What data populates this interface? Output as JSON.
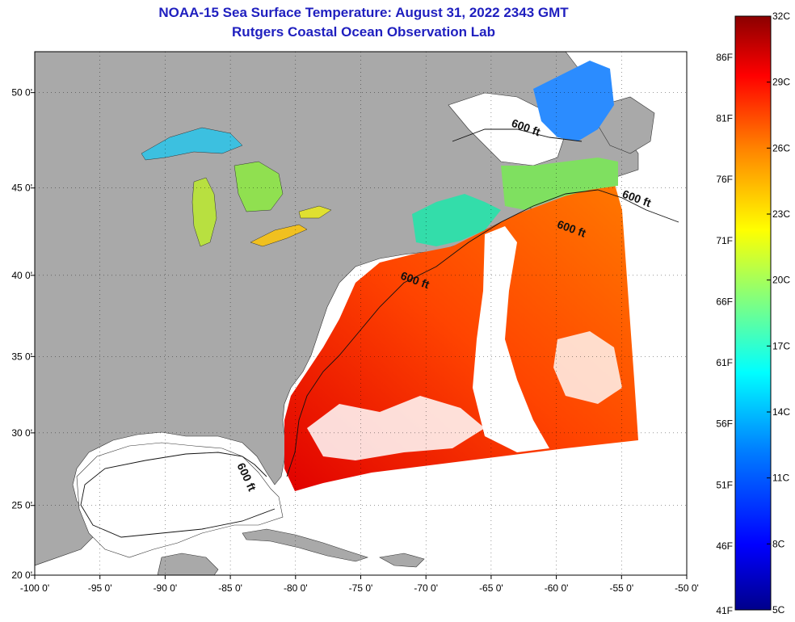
{
  "title": "NOAA-15 Sea Surface Temperature:  August 31, 2022 2343 GMT",
  "subtitle": "Rutgers Coastal Ocean Observation Lab",
  "map": {
    "lon_range": [
      -100,
      -50
    ],
    "lat_range": [
      20,
      52
    ],
    "lon_ticks": [
      "-100 0'",
      "-95 0'",
      "-90 0'",
      "-85 0'",
      "-80 0'",
      "-75 0'",
      "-70 0'",
      "-65 0'",
      "-60 0'",
      "-55 0'",
      "-50 0'"
    ],
    "lat_ticks": [
      "20 0'",
      "25 0'",
      "30 0'",
      "35 0'",
      "40 0'",
      "45 0'",
      "50 0'"
    ],
    "land_color": "#a9a9a9",
    "no_data_color": "#ffffff",
    "isobath_label": "600 ft",
    "isobath_labels": [
      {
        "text": "600 ft",
        "lon": -63.5,
        "lat": 48.3
      },
      {
        "text": "600 ft",
        "lon": -55,
        "lat": 44.5
      },
      {
        "text": "600 ft",
        "lon": -60,
        "lat": 42.8
      },
      {
        "text": "600 ft",
        "lon": -72,
        "lat": 39.8
      },
      {
        "text": "600 ft",
        "lon": -84.5,
        "lat": 27.8
      }
    ]
  },
  "colorbar": {
    "c_labels": [
      "32C",
      "29C",
      "26C",
      "23C",
      "20C",
      "17C",
      "14C",
      "11C",
      "8C",
      "5C"
    ],
    "f_labels": [
      "86F",
      "81F",
      "76F",
      "71F",
      "66F",
      "61F",
      "56F",
      "51F",
      "46F",
      "41F"
    ],
    "c_min": 5,
    "c_max": 32,
    "colors": [
      "#00008b",
      "#0000ff",
      "#0080ff",
      "#00ffff",
      "#80ff80",
      "#ffff00",
      "#ff8000",
      "#ff0000",
      "#8b0000"
    ]
  }
}
